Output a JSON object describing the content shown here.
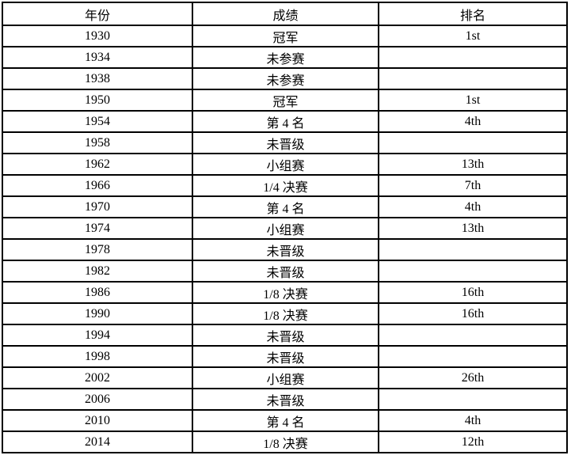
{
  "chart_data": {
    "type": "table",
    "columns": [
      "年份",
      "成绩",
      "排名"
    ],
    "rows": [
      {
        "year": "1930",
        "result": "冠军",
        "rank": "1st"
      },
      {
        "year": "1934",
        "result": "未参赛",
        "rank": ""
      },
      {
        "year": "1938",
        "result": "未参赛",
        "rank": ""
      },
      {
        "year": "1950",
        "result": "冠军",
        "rank": "1st"
      },
      {
        "year": "1954",
        "result": "第 4 名",
        "rank": "4th"
      },
      {
        "year": "1958",
        "result": "未晋级",
        "rank": ""
      },
      {
        "year": "1962",
        "result": "小组赛",
        "rank": "13th"
      },
      {
        "year": "1966",
        "result": "1/4 决赛",
        "rank": "7th"
      },
      {
        "year": "1970",
        "result": "第 4 名",
        "rank": "4th"
      },
      {
        "year": "1974",
        "result": "小组赛",
        "rank": "13th"
      },
      {
        "year": "1978",
        "result": "未晋级",
        "rank": ""
      },
      {
        "year": "1982",
        "result": "未晋级",
        "rank": ""
      },
      {
        "year": "1986",
        "result": "1/8 决赛",
        "rank": "16th"
      },
      {
        "year": "1990",
        "result": "1/8 决赛",
        "rank": "16th"
      },
      {
        "year": "1994",
        "result": "未晋级",
        "rank": ""
      },
      {
        "year": "1998",
        "result": "未晋级",
        "rank": ""
      },
      {
        "year": "2002",
        "result": "小组赛",
        "rank": "26th"
      },
      {
        "year": "2006",
        "result": "未晋级",
        "rank": ""
      },
      {
        "year": "2010",
        "result": "第 4 名",
        "rank": "4th"
      },
      {
        "year": "2014",
        "result": "1/8 决赛",
        "rank": "12th"
      }
    ],
    "colors": {
      "border": "#000000",
      "text": "#000000",
      "background": "#ffffff"
    }
  }
}
